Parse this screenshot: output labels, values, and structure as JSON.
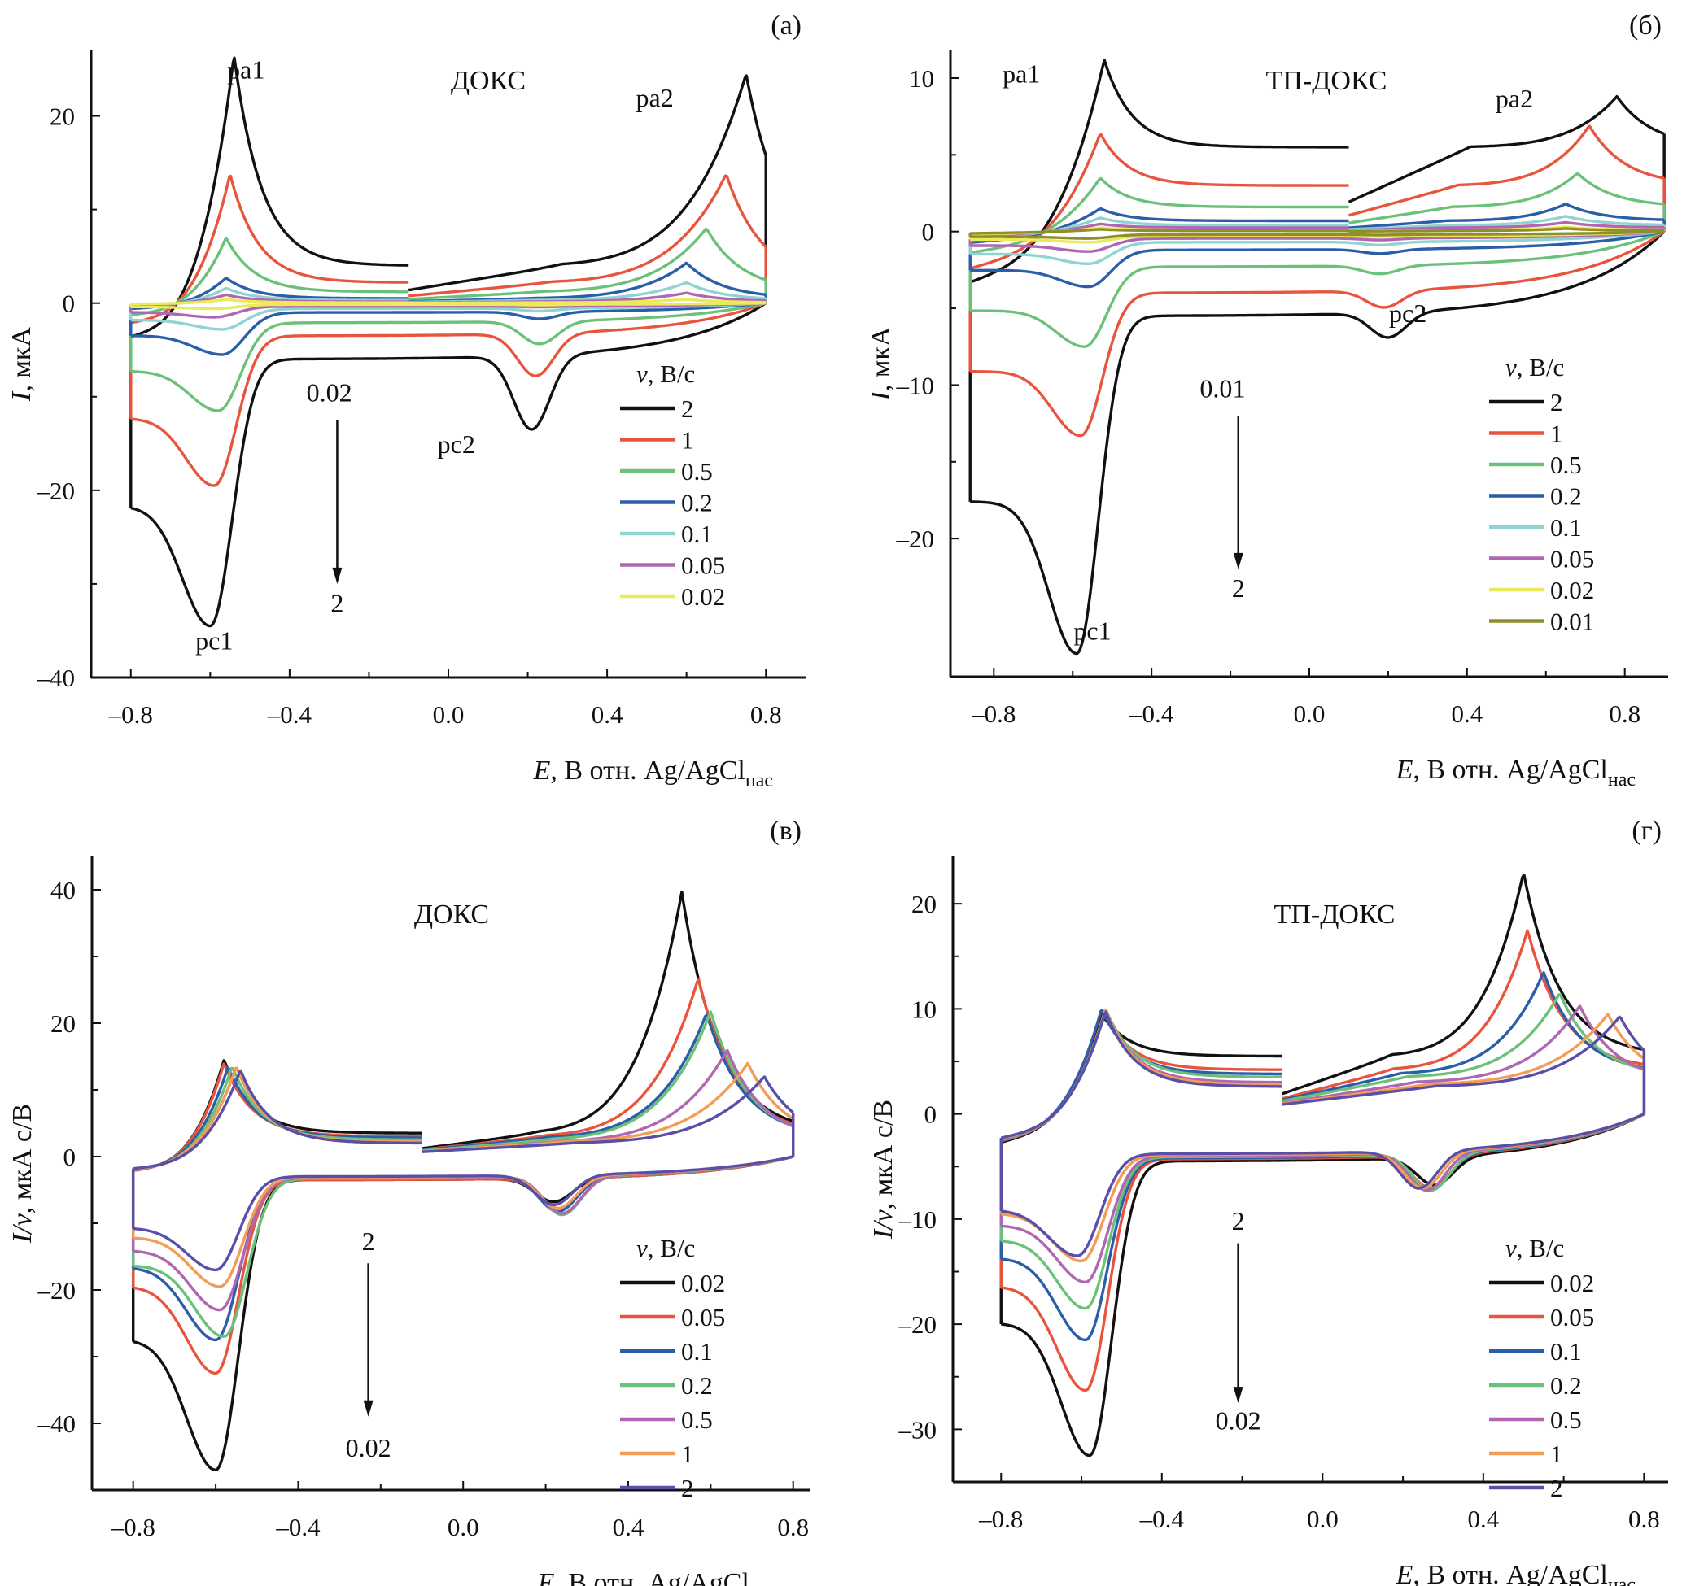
{
  "figure": {
    "xlabel_prefix": "E",
    "xlabel_main": ", В отн. Ag/AgCl",
    "xlabel_sub": "нас"
  },
  "colors": {
    "black": "#111111",
    "red": "#e8553e",
    "green": "#6cc17a",
    "blue": "#2a5ea8",
    "cyan": "#8fd3d3",
    "magenta": "#b066b0",
    "yellow": "#eaea5a",
    "olive": "#8f8f2a",
    "orange": "#f39c55",
    "purple": "#5a4fa8"
  },
  "chart_data": [
    {
      "id": "a",
      "type": "line",
      "panel_label": "(а)",
      "compound": "ДОКС",
      "ylabel_prefix": "I",
      "ylabel_main": ", мкА",
      "xlim": [
        -0.9,
        0.9
      ],
      "ylim": [
        -40,
        27
      ],
      "xticks": [
        -0.8,
        -0.4,
        0.0,
        0.4,
        0.8
      ],
      "xtick_labels": [
        "–0.8",
        "–0.4",
        "0.0",
        "0.4",
        "0.8"
      ],
      "yticks": [
        -40,
        -20,
        0,
        20
      ],
      "ytick_labels": [
        "–40",
        "–20",
        "0",
        "20"
      ],
      "legend_title": "v, В/с",
      "legend_position": "center-right",
      "annotations": [
        {
          "text": "pa1",
          "x": -0.51,
          "y": 24
        },
        {
          "text": "pa2",
          "x": 0.52,
          "y": 21
        },
        {
          "text": "pc1",
          "x": -0.59,
          "y": -37
        },
        {
          "text": "pc2",
          "x": 0.02,
          "y": -16
        },
        {
          "text": "0.02",
          "x": -0.3,
          "y": -10.5
        },
        {
          "text": "2",
          "x": -0.28,
          "y": -33
        }
      ],
      "arrow": {
        "from": [
          -0.28,
          -12.5
        ],
        "to": [
          -0.28,
          -30
        ]
      },
      "params": {
        "Estart": -0.8,
        "Eend": 0.8,
        "Ebreak": -0.1
      },
      "series": [
        {
          "name": "2",
          "color": "black",
          "pa1": [
            -0.54,
            26.5
          ],
          "pa2": [
            0.75,
            24.5
          ],
          "pc1": [
            -0.6,
            -34.5
          ],
          "pc2": [
            0.21,
            -13
          ],
          "base_a": 4,
          "base_c": -6
        },
        {
          "name": "1",
          "color": "red",
          "pa1": [
            -0.55,
            13.8
          ],
          "pa2": [
            0.7,
            13.8
          ],
          "pc1": [
            -0.59,
            -19.5
          ],
          "pc2": [
            0.22,
            -7.5
          ],
          "base_a": 2.2,
          "base_c": -3.5
        },
        {
          "name": "0.5",
          "color": "green",
          "pa1": [
            -0.56,
            7
          ],
          "pa2": [
            0.65,
            8
          ],
          "pc1": [
            -0.58,
            -11.5
          ],
          "pc2": [
            0.23,
            -4.2
          ],
          "base_a": 1.2,
          "base_c": -2.1
        },
        {
          "name": "0.2",
          "color": "blue",
          "pa1": [
            -0.56,
            2.7
          ],
          "pa2": [
            0.6,
            4.3
          ],
          "pc1": [
            -0.57,
            -5.5
          ],
          "pc2": [
            0.23,
            -1.6
          ],
          "base_a": 0.5,
          "base_c": -1
        },
        {
          "name": "0.1",
          "color": "cyan",
          "pa1": [
            -0.56,
            1.6
          ],
          "pa2": [
            0.6,
            2.2
          ],
          "pc1": [
            -0.57,
            -2.8
          ],
          "pc2": [
            0.23,
            -0.8
          ],
          "base_a": 0.3,
          "base_c": -0.6
        },
        {
          "name": "0.05",
          "color": "magenta",
          "pa1": [
            -0.56,
            0.9
          ],
          "pa2": [
            0.6,
            1.1
          ],
          "pc1": [
            -0.59,
            -1.5
          ],
          "pc2": [
            0.23,
            -0.4
          ],
          "base_a": 0.15,
          "base_c": -0.35
        },
        {
          "name": "0.02",
          "color": "yellow",
          "pa1": [
            -0.56,
            0.4
          ],
          "pa2": [
            0.6,
            0.4
          ],
          "pc1": [
            -0.59,
            -0.6
          ],
          "pc2": [
            0.23,
            -0.2
          ],
          "base_a": 0.05,
          "base_c": -0.15
        }
      ]
    },
    {
      "id": "b",
      "type": "line",
      "panel_label": "(б)",
      "compound": "ТП-ДОКС",
      "ylabel_prefix": "I",
      "ylabel_main": ", мкА",
      "xlim": [
        -0.91,
        0.91
      ],
      "ylim": [
        -29,
        11.8
      ],
      "xticks": [
        -0.8,
        -0.4,
        0.0,
        0.4,
        0.8
      ],
      "xtick_labels": [
        "–0.8",
        "–0.4",
        "0.0",
        "0.4",
        "0.8"
      ],
      "yticks": [
        -20,
        -10,
        0,
        10
      ],
      "ytick_labels": [
        "–20",
        "–10",
        "0",
        "10"
      ],
      "legend_title": "v, В/с",
      "legend_position": "center-right",
      "annotations": [
        {
          "text": "pa1",
          "x": -0.73,
          "y": 9.7
        },
        {
          "text": "pa2",
          "x": 0.52,
          "y": 8.1
        },
        {
          "text": "pc1",
          "x": -0.55,
          "y": -26.6
        },
        {
          "text": "pc2",
          "x": 0.25,
          "y": -5.9
        },
        {
          "text": "0.01",
          "x": -0.22,
          "y": -10.8
        },
        {
          "text": "2",
          "x": -0.18,
          "y": -23.8
        }
      ],
      "arrow": {
        "from": [
          -0.18,
          -12
        ],
        "to": [
          -0.18,
          -22
        ]
      },
      "params": {
        "Estart": -0.86,
        "Eend": 0.9,
        "Ebreak": 0.1
      },
      "series": [
        {
          "name": "2",
          "color": "black",
          "pa1": [
            -0.52,
            11.2
          ],
          "pa2": [
            0.78,
            8.8
          ],
          "pc1": [
            -0.59,
            -27.5
          ],
          "pc2": [
            0.2,
            -6.3
          ],
          "base_a": 5.5,
          "base_c": -5.5
        },
        {
          "name": "1",
          "color": "red",
          "pa1": [
            -0.53,
            6.4
          ],
          "pa2": [
            0.71,
            6.9
          ],
          "pc1": [
            -0.58,
            -13.3
          ],
          "pc2": [
            0.19,
            -4.5
          ],
          "base_a": 3.0,
          "base_c": -4
        },
        {
          "name": "0.5",
          "color": "green",
          "pa1": [
            -0.53,
            3.5
          ],
          "pa2": [
            0.68,
            3.8
          ],
          "pc1": [
            -0.57,
            -7.5
          ],
          "pc2": [
            0.18,
            -2.5
          ],
          "base_a": 1.6,
          "base_c": -2.3
        },
        {
          "name": "0.2",
          "color": "blue",
          "pa1": [
            -0.53,
            1.5
          ],
          "pa2": [
            0.65,
            1.8
          ],
          "pc1": [
            -0.56,
            -3.6
          ],
          "pc2": [
            0.18,
            -1.3
          ],
          "base_a": 0.7,
          "base_c": -1.2
        },
        {
          "name": "0.1",
          "color": "cyan",
          "pa1": [
            -0.53,
            0.9
          ],
          "pa2": [
            0.65,
            1.0
          ],
          "pc1": [
            -0.56,
            -2.1
          ],
          "pc2": [
            0.18,
            -0.8
          ],
          "base_a": 0.4,
          "base_c": -0.7
        },
        {
          "name": "0.05",
          "color": "magenta",
          "pa1": [
            -0.53,
            0.5
          ],
          "pa2": [
            0.65,
            0.6
          ],
          "pc1": [
            -0.56,
            -1.3
          ],
          "pc2": [
            0.18,
            -0.5
          ],
          "base_a": 0.25,
          "base_c": -0.45
        },
        {
          "name": "0.02",
          "color": "yellow",
          "pa1": [
            -0.53,
            0.25
          ],
          "pa2": [
            0.65,
            0.3
          ],
          "pc1": [
            -0.56,
            -0.7
          ],
          "pc2": [
            0.18,
            -0.3
          ],
          "base_a": 0.1,
          "base_c": -0.3
        },
        {
          "name": "0.01",
          "color": "olive",
          "pa1": [
            -0.53,
            0.15
          ],
          "pa2": [
            0.65,
            0.2
          ],
          "pc1": [
            -0.56,
            -0.45
          ],
          "pc2": [
            0.18,
            -0.2
          ],
          "base_a": 0.05,
          "base_c": -0.2
        }
      ]
    },
    {
      "id": "c",
      "type": "line",
      "panel_label": "(в)",
      "compound": "ДОКС",
      "ylabel_prefix": "I/v",
      "ylabel_main": ", мкА с/В",
      "xlim": [
        -0.9,
        0.84
      ],
      "ylim": [
        -50,
        45
      ],
      "xticks": [
        -0.8,
        -0.4,
        0.0,
        0.4,
        0.8
      ],
      "xtick_labels": [
        "–0.8",
        "–0.4",
        "0.0",
        "0.4",
        "0.8"
      ],
      "yticks": [
        -40,
        -20,
        0,
        20,
        40
      ],
      "ytick_labels": [
        "–40",
        "–20",
        "0",
        "20",
        "40"
      ],
      "legend_title": "v, В/с",
      "legend_position": "bottom-right",
      "annotations": [
        {
          "text": "2",
          "x": -0.23,
          "y": -14
        },
        {
          "text": "0.02",
          "x": -0.23,
          "y": -45
        }
      ],
      "arrow": {
        "from": [
          -0.23,
          -16
        ],
        "to": [
          -0.23,
          -39
        ]
      },
      "params": {
        "Estart": -0.8,
        "Eend": 0.8,
        "Ebreak": -0.1
      },
      "series": [
        {
          "name": "0.02",
          "color": "black",
          "pa1": [
            -0.58,
            14.5
          ],
          "pa2": [
            0.53,
            39.7
          ],
          "pc1": [
            -0.6,
            -47
          ],
          "pc2": [
            0.22,
            -6.5
          ],
          "base_a": 3.5,
          "base_c": -3.5
        },
        {
          "name": "0.05",
          "color": "red",
          "pa1": [
            -0.58,
            14
          ],
          "pa2": [
            0.57,
            26.8
          ],
          "pc1": [
            -0.6,
            -32.5
          ],
          "pc2": [
            0.23,
            -7.5
          ],
          "base_a": 3.0,
          "base_c": -3.5
        },
        {
          "name": "0.1",
          "color": "blue",
          "pa1": [
            -0.57,
            13.5
          ],
          "pa2": [
            0.59,
            21.5
          ],
          "pc1": [
            -0.6,
            -27.5
          ],
          "pc2": [
            0.23,
            -8
          ],
          "base_a": 2.8,
          "base_c": -3.3
        },
        {
          "name": "0.2",
          "color": "green",
          "pa1": [
            -0.56,
            13.5
          ],
          "pa2": [
            0.6,
            21.8
          ],
          "pc1": [
            -0.58,
            -27
          ],
          "pc2": [
            0.24,
            -8.5
          ],
          "base_a": 2.5,
          "base_c": -3.3
        },
        {
          "name": "0.5",
          "color": "magenta",
          "pa1": [
            -0.55,
            13.5
          ],
          "pa2": [
            0.64,
            16
          ],
          "pc1": [
            -0.59,
            -23
          ],
          "pc2": [
            0.24,
            -8.3
          ],
          "base_a": 2.2,
          "base_c": -3.2
        },
        {
          "name": "1",
          "color": "orange",
          "pa1": [
            -0.55,
            13.5
          ],
          "pa2": [
            0.69,
            14
          ],
          "pc1": [
            -0.59,
            -19.5
          ],
          "pc2": [
            0.23,
            -7.5
          ],
          "base_a": 2.2,
          "base_c": -3.1
        },
        {
          "name": "2",
          "color": "purple",
          "pa1": [
            -0.54,
            13
          ],
          "pa2": [
            0.73,
            12
          ],
          "pc1": [
            -0.6,
            -17
          ],
          "pc2": [
            0.22,
            -7
          ],
          "base_a": 2.0,
          "base_c": -3.0
        }
      ]
    },
    {
      "id": "d",
      "type": "line",
      "panel_label": "(г)",
      "compound": "ТП-ДОКС",
      "ylabel_prefix": "I/v",
      "ylabel_main": ", мкА с/В",
      "xlim": [
        -0.92,
        0.86
      ],
      "ylim": [
        -35,
        24.5
      ],
      "xticks": [
        -0.8,
        -0.4,
        0.0,
        0.4,
        0.8
      ],
      "xtick_labels": [
        "–0.8",
        "–0.4",
        "0.0",
        "0.4",
        "0.8"
      ],
      "yticks": [
        -30,
        -20,
        -10,
        0,
        10,
        20
      ],
      "ytick_labels": [
        "–30",
        "–20",
        "–10",
        "0",
        "10",
        "20"
      ],
      "legend_title": "v, В/с",
      "legend_position": "bottom-right",
      "annotations": [
        {
          "text": "2",
          "x": -0.21,
          "y": -11
        },
        {
          "text": "0.02",
          "x": -0.21,
          "y": -30
        }
      ],
      "arrow": {
        "from": [
          -0.21,
          -12.3
        ],
        "to": [
          -0.21,
          -27.5
        ]
      },
      "params": {
        "Estart": -0.8,
        "Eend": 0.8,
        "Ebreak": -0.1
      },
      "series": [
        {
          "name": "0.02",
          "color": "black",
          "pa1": [
            -0.55,
            9.5
          ],
          "pa2": [
            0.5,
            23
          ],
          "pc1": [
            -0.58,
            -32.5
          ],
          "pc2": [
            0.28,
            -6.5
          ],
          "base_a": 5.5,
          "base_c": -4.5
        },
        {
          "name": "0.05",
          "color": "red",
          "pa1": [
            -0.55,
            10
          ],
          "pa2": [
            0.51,
            17.5
          ],
          "pc1": [
            -0.59,
            -26.3
          ],
          "pc2": [
            0.27,
            -6.8
          ],
          "base_a": 4.2,
          "base_c": -4.3
        },
        {
          "name": "0.1",
          "color": "blue",
          "pa1": [
            -0.55,
            10
          ],
          "pa2": [
            0.55,
            13.5
          ],
          "pc1": [
            -0.59,
            -21.5
          ],
          "pc2": [
            0.27,
            -7
          ],
          "base_a": 3.8,
          "base_c": -4.2
        },
        {
          "name": "0.2",
          "color": "green",
          "pa1": [
            -0.54,
            10
          ],
          "pa2": [
            0.59,
            11.5
          ],
          "pc1": [
            -0.59,
            -18.5
          ],
          "pc2": [
            0.27,
            -7
          ],
          "base_a": 3.5,
          "base_c": -4.1
        },
        {
          "name": "0.5",
          "color": "magenta",
          "pa1": [
            -0.54,
            10
          ],
          "pa2": [
            0.64,
            10.3
          ],
          "pc1": [
            -0.59,
            -16
          ],
          "pc2": [
            0.26,
            -7
          ],
          "base_a": 3.0,
          "base_c": -4.0
        },
        {
          "name": "1",
          "color": "orange",
          "pa1": [
            -0.54,
            10
          ],
          "pa2": [
            0.71,
            9.5
          ],
          "pc1": [
            -0.6,
            -14
          ],
          "pc2": [
            0.25,
            -6.8
          ],
          "base_a": 2.8,
          "base_c": -3.9
        },
        {
          "name": "2",
          "color": "purple",
          "pa1": [
            -0.54,
            9.8
          ],
          "pa2": [
            0.74,
            9.3
          ],
          "pc1": [
            -0.61,
            -13.5
          ],
          "pc2": [
            0.24,
            -6.8
          ],
          "base_a": 2.6,
          "base_c": -3.8
        }
      ]
    }
  ]
}
